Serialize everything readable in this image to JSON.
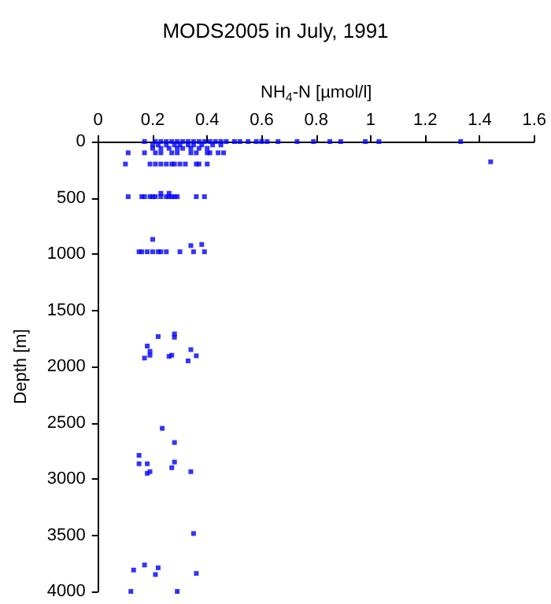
{
  "chart_data": {
    "type": "scatter",
    "title": "MODS2005 in July, 1991",
    "xlabel": "NH$_{4}$-N [µmol/l]",
    "ylabel": "Depth [m]",
    "x": [
      0.17,
      0.21,
      0.23,
      0.25,
      0.27,
      0.29,
      0.31,
      0.33,
      0.35,
      0.37,
      0.39,
      0.41,
      0.43,
      0.45,
      0.47,
      0.5,
      0.52,
      0.55,
      0.58,
      0.6,
      0.62,
      0.66,
      0.73,
      0.79,
      0.85,
      0.89,
      0.98,
      1.03,
      1.33,
      0.2,
      0.22,
      0.25,
      0.28,
      0.3,
      0.33,
      0.35,
      0.38,
      0.42,
      0.45,
      0.2,
      0.23,
      0.26,
      0.29,
      0.31,
      0.34,
      0.37,
      0.4,
      0.11,
      0.17,
      0.21,
      0.23,
      0.27,
      0.29,
      0.34,
      0.36,
      0.4,
      0.41,
      0.44,
      0.46,
      0.1,
      0.19,
      0.21,
      0.23,
      0.25,
      0.27,
      0.28,
      0.3,
      0.32,
      0.36,
      0.37,
      0.4,
      1.44,
      0.11,
      0.16,
      0.17,
      0.19,
      0.2,
      0.21,
      0.23,
      0.25,
      0.26,
      0.27,
      0.28,
      0.29,
      0.36,
      0.39,
      0.23,
      0.26,
      0.15,
      0.16,
      0.18,
      0.2,
      0.22,
      0.23,
      0.25,
      0.3,
      0.35,
      0.39,
      0.2,
      0.34,
      0.38,
      0.22,
      0.28,
      0.28,
      0.18,
      0.19,
      0.19,
      0.17,
      0.27,
      0.26,
      0.34,
      0.36,
      0.33,
      0.235,
      0.28,
      0.15,
      0.15,
      0.18,
      0.18,
      0.19,
      0.27,
      0.28,
      0.34,
      0.35,
      0.13,
      0.17,
      0.22,
      0.21,
      0.36,
      0.12,
      0.29
    ],
    "values": [
      0,
      0,
      0,
      0,
      0,
      0,
      0,
      0,
      0,
      0,
      0,
      0,
      0,
      0,
      0,
      0,
      0,
      0,
      0,
      0,
      0,
      0,
      0,
      0,
      0,
      0,
      0,
      0,
      0,
      30,
      30,
      30,
      30,
      30,
      30,
      30,
      30,
      30,
      30,
      60,
      60,
      60,
      60,
      60,
      60,
      60,
      60,
      100,
      100,
      100,
      100,
      100,
      100,
      100,
      100,
      100,
      100,
      100,
      100,
      200,
      200,
      200,
      200,
      200,
      200,
      200,
      200,
      200,
      200,
      200,
      200,
      180,
      490,
      490,
      490,
      490,
      490,
      490,
      490,
      490,
      490,
      490,
      490,
      490,
      490,
      490,
      460,
      460,
      980,
      980,
      980,
      980,
      980,
      980,
      980,
      980,
      980,
      980,
      870,
      925,
      915,
      1734,
      1710,
      1740,
      1818,
      1865,
      1900,
      1925,
      1900,
      1910,
      1850,
      1905,
      1950,
      2550,
      2676,
      2790,
      2865,
      2865,
      2950,
      2935,
      2900,
      2850,
      2935,
      3485,
      3810,
      3765,
      3790,
      3850,
      3840,
      4000,
      4000
    ],
    "color": "#0000ff",
    "marker": "square",
    "grid": false,
    "xlim": [
      0,
      1.6
    ],
    "xticks": [
      0,
      0.2,
      0.4,
      0.6,
      0.8,
      1,
      1.2,
      1.4,
      1.6
    ],
    "ylim": [
      4000,
      0
    ],
    "yticks": [
      0,
      500,
      1000,
      1500,
      2000,
      2500,
      3000,
      3500,
      4000
    ]
  }
}
